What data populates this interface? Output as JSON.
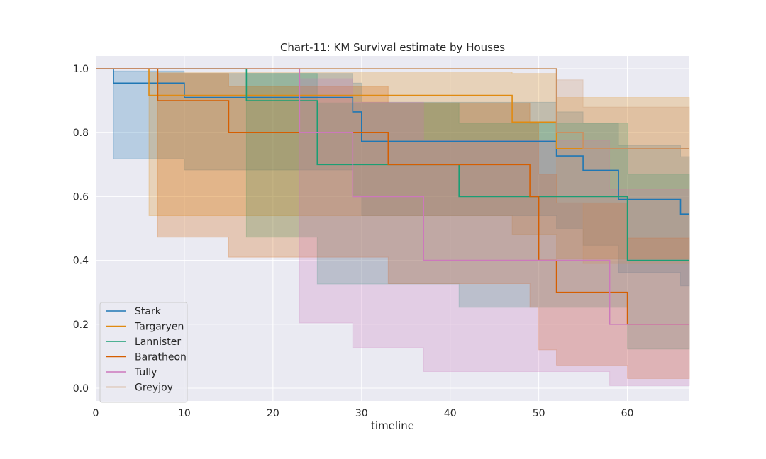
{
  "chart_data": {
    "type": "line",
    "subtype": "kaplan-meier step survival curves with confidence bands",
    "title": "Chart-11: KM Survival estimate by Houses",
    "xlabel": "timeline",
    "ylabel": "",
    "xlim": [
      0,
      67
    ],
    "ylim": [
      -0.04,
      1.04
    ],
    "xticks": [
      "0",
      "10",
      "20",
      "30",
      "40",
      "50",
      "60"
    ],
    "yticks": [
      "0.0",
      "0.2",
      "0.4",
      "0.6",
      "0.8",
      "1.0"
    ],
    "grid": true,
    "background": "#eaeaf2",
    "legend_position": "lower-left",
    "series": [
      {
        "name": "Stark",
        "color": "#1f77b4",
        "times": [
          0,
          2,
          10,
          29,
          30,
          52,
          55,
          59,
          66,
          67
        ],
        "survival": [
          1.0,
          0.955,
          0.91,
          0.865,
          0.773,
          0.727,
          0.682,
          0.591,
          0.545,
          0.545
        ],
        "ci_lower": [
          1.0,
          0.718,
          0.683,
          0.605,
          0.54,
          0.498,
          0.447,
          0.362,
          0.32,
          0.32
        ],
        "ci_upper": [
          1.0,
          0.993,
          0.985,
          0.955,
          0.895,
          0.865,
          0.83,
          0.76,
          0.725,
          0.725
        ]
      },
      {
        "name": "Targaryen",
        "color": "#e08a10",
        "times": [
          0,
          6,
          47,
          52,
          67
        ],
        "survival": [
          1.0,
          0.917,
          0.833,
          0.75,
          0.75
        ],
        "ci_lower": [
          1.0,
          0.54,
          0.48,
          0.405,
          0.405
        ],
        "ci_upper": [
          1.0,
          0.99,
          0.985,
          0.91,
          0.91
        ]
      },
      {
        "name": "Lannister",
        "color": "#1a9e74",
        "times": [
          0,
          17,
          25,
          41,
          60,
          67
        ],
        "survival": [
          1.0,
          0.9,
          0.7,
          0.6,
          0.4,
          0.4
        ],
        "ci_lower": [
          1.0,
          0.473,
          0.326,
          0.253,
          0.122,
          0.122
        ],
        "ci_upper": [
          1.0,
          0.985,
          0.893,
          0.83,
          0.67,
          0.67
        ]
      },
      {
        "name": "Baratheon",
        "color": "#d55e00",
        "times": [
          0,
          7,
          15,
          33,
          49,
          50,
          52,
          60,
          67
        ],
        "survival": [
          1.0,
          0.9,
          0.8,
          0.7,
          0.6,
          0.4,
          0.3,
          0.2,
          0.2
        ],
        "ci_lower": [
          1.0,
          0.473,
          0.41,
          0.327,
          0.253,
          0.12,
          0.07,
          0.03,
          0.03
        ],
        "ci_upper": [
          1.0,
          0.985,
          0.945,
          0.893,
          0.83,
          0.67,
          0.58,
          0.47,
          0.47
        ]
      },
      {
        "name": "Tully",
        "color": "#cc78bc",
        "times": [
          0,
          23,
          29,
          37,
          58,
          67
        ],
        "survival": [
          1.0,
          0.8,
          0.6,
          0.4,
          0.2,
          0.2
        ],
        "ci_lower": [
          1.0,
          0.204,
          0.126,
          0.052,
          0.008,
          0.008
        ],
        "ci_upper": [
          1.0,
          0.969,
          0.895,
          0.776,
          0.622,
          0.622
        ]
      },
      {
        "name": "Greyjoy",
        "color": "#ca9161",
        "times": [
          0,
          52,
          55,
          67
        ],
        "survival": [
          1.0,
          0.8,
          0.75,
          0.75
        ],
        "ci_lower": [
          1.0,
          0.58,
          0.39,
          0.39
        ],
        "ci_upper": [
          1.0,
          0.965,
          0.88,
          0.88
        ]
      }
    ]
  }
}
